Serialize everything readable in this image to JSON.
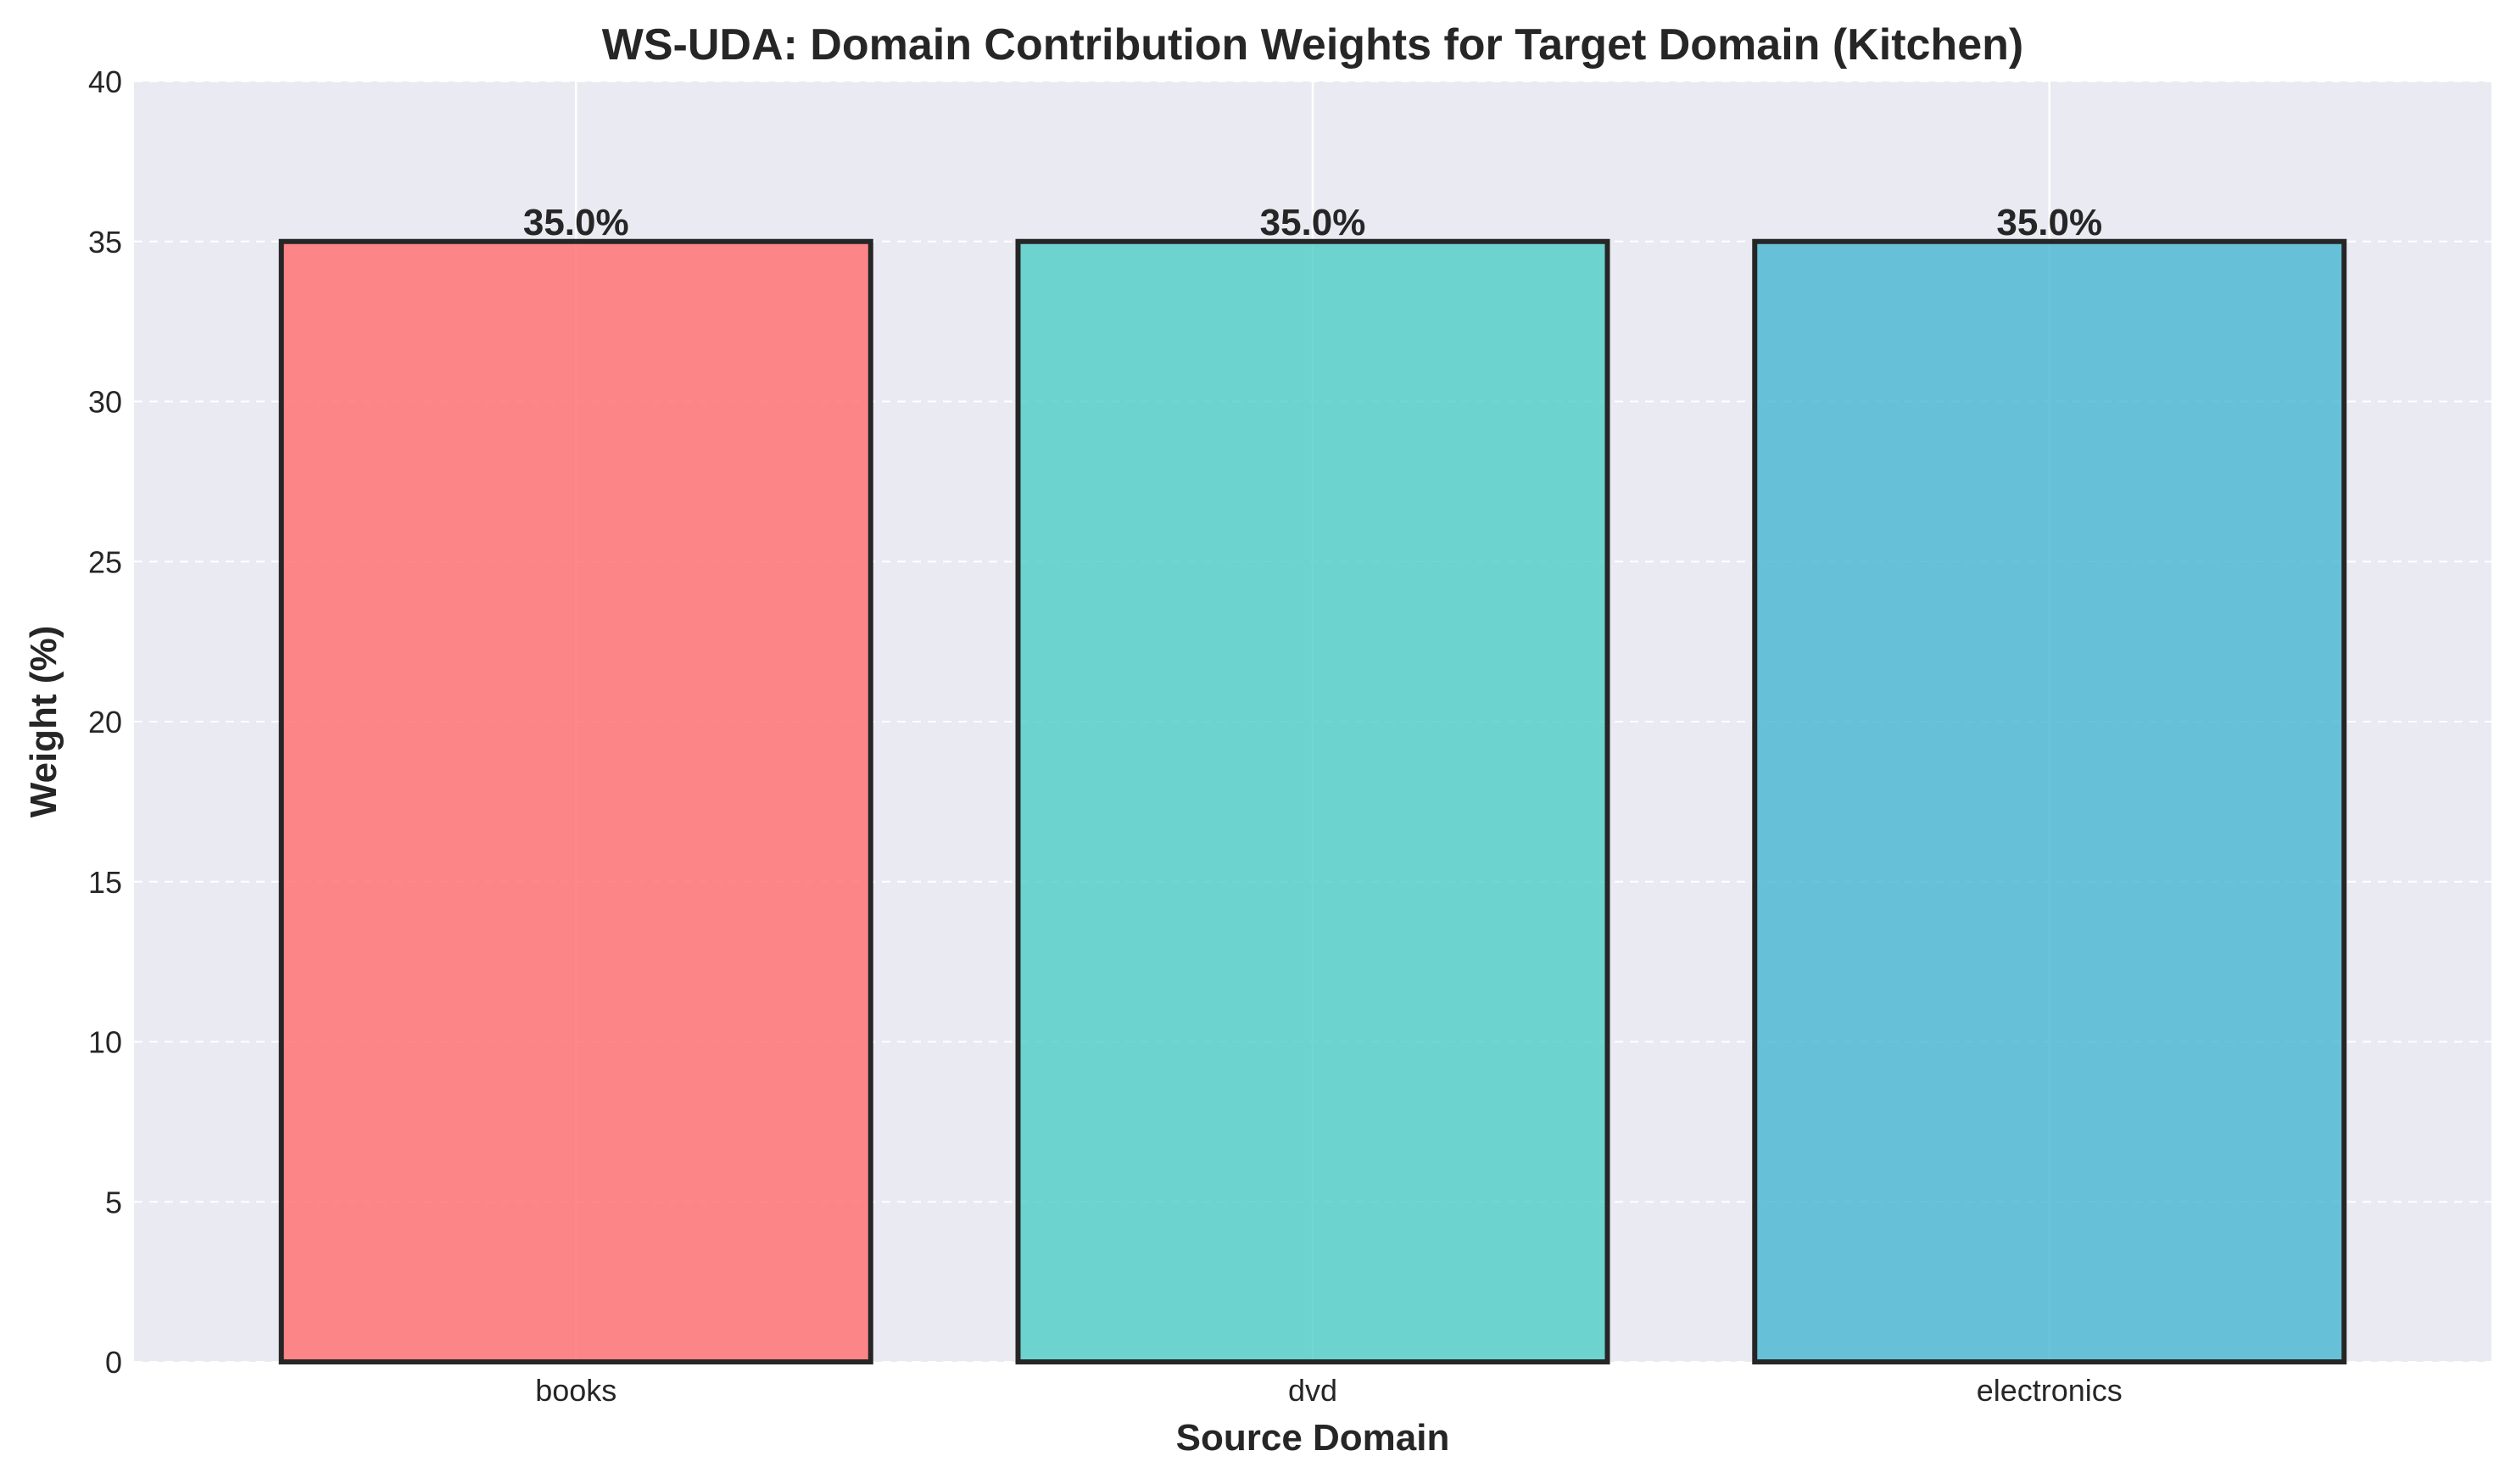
{
  "chart_data": {
    "type": "bar",
    "title": "WS-UDA: Domain Contribution Weights for Target Domain (Kitchen)",
    "xlabel": "Source Domain",
    "ylabel": "Weight (%)",
    "categories": [
      "books",
      "dvd",
      "electronics"
    ],
    "values": [
      35.0,
      35.0,
      35.0
    ],
    "value_labels": [
      "35.0%",
      "35.0%",
      "35.0%"
    ],
    "colors": [
      "#FF6B6B",
      "#4ECDC4",
      "#45B7D1"
    ],
    "bar_opacity": 0.8,
    "ylim": [
      0,
      40
    ],
    "yticks": [
      "0",
      "5",
      "10",
      "15",
      "20",
      "25",
      "30",
      "35",
      "40"
    ],
    "grid": true,
    "plot_background": "#EAEAF2",
    "edge_color": "#262626",
    "legend": "none"
  }
}
